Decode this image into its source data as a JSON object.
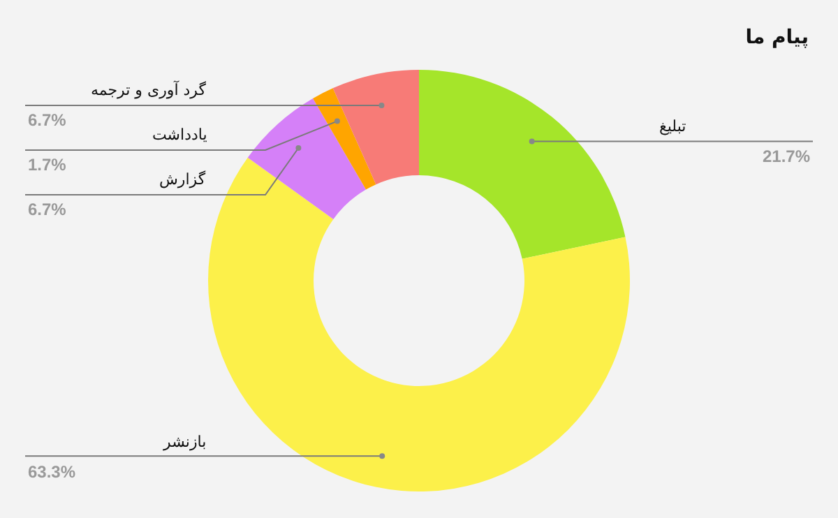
{
  "chart_data": {
    "type": "donut",
    "title": "پیام ما",
    "categories": [
      "تبلیغ",
      "بازنشر",
      "گزارش",
      "یادداشت",
      "گرد آوری و ترجمه"
    ],
    "values": [
      21.7,
      63.3,
      6.7,
      1.7,
      6.7
    ],
    "value_labels": [
      "21.7%",
      "63.3%",
      "6.7%",
      "1.7%",
      "6.7%"
    ],
    "colors": [
      "#a5e52a",
      "#fcf04a",
      "#d580f8",
      "#ffa500",
      "#f77b77"
    ],
    "legend": false
  }
}
